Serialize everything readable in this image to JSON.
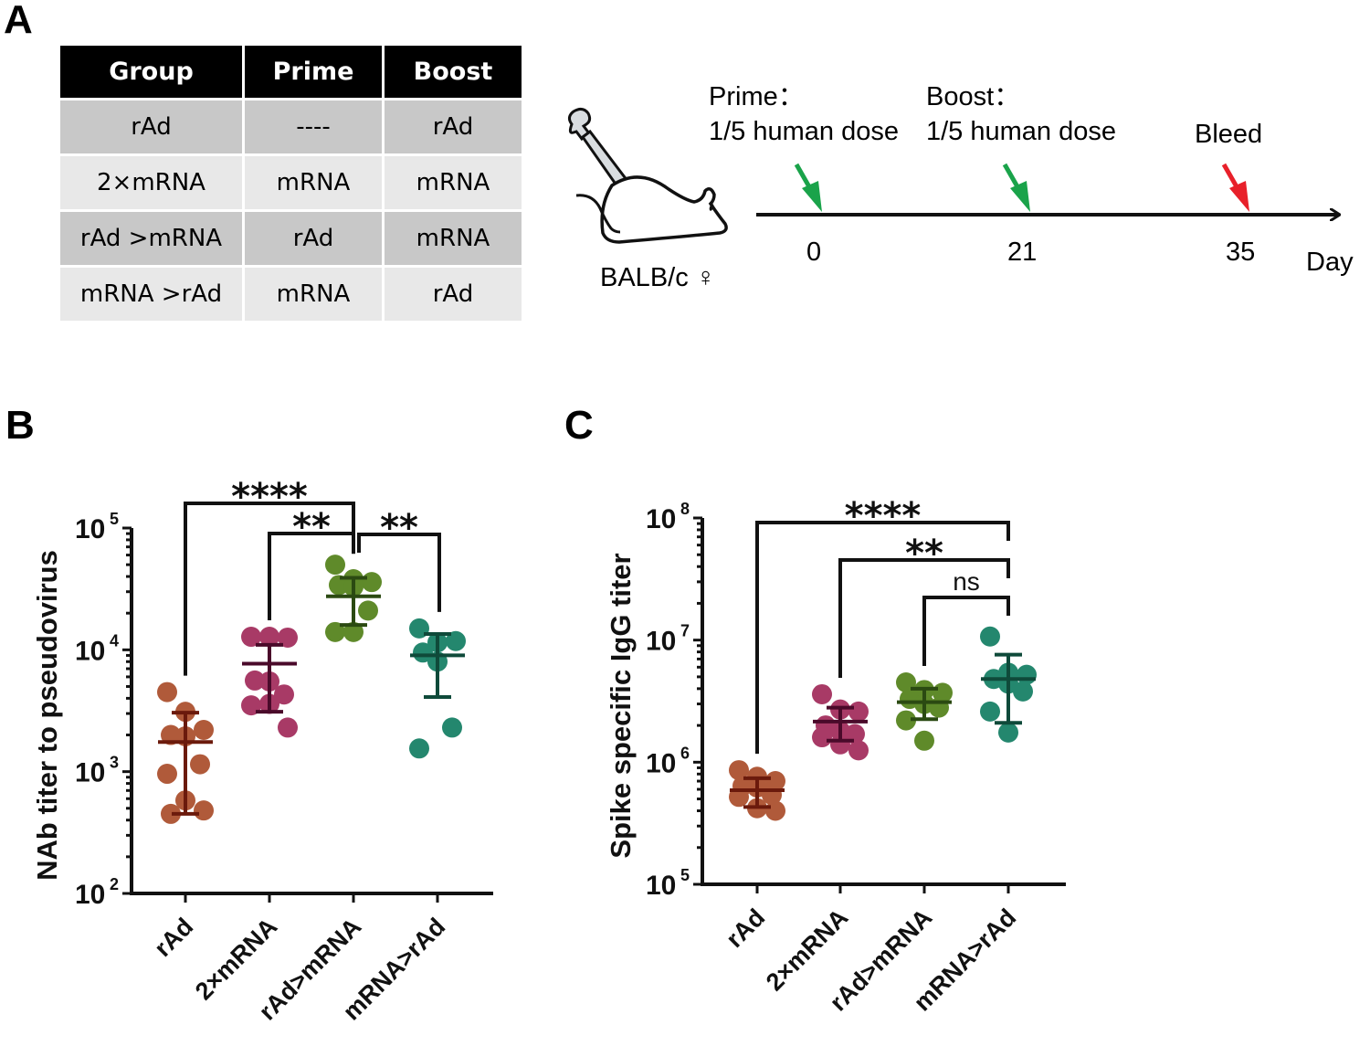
{
  "panels": {
    "a": "A",
    "b": "B",
    "c": "C"
  },
  "table": {
    "headers": [
      "Group",
      "Prime",
      "Boost"
    ],
    "rows": [
      [
        "rAd",
        "----",
        "rAd"
      ],
      [
        "2×mRNA",
        "mRNA",
        "mRNA"
      ],
      [
        "rAd >mRNA",
        "rAd",
        "mRNA"
      ],
      [
        "mRNA >rAd",
        "mRNA",
        "rAd"
      ]
    ]
  },
  "timeline": {
    "prime_label": "Prime：",
    "prime_dose": "1/5 human dose",
    "boost_label": "Boost：",
    "boost_dose": "1/5 human dose",
    "bleed_label": "Bleed",
    "strain": "BALB/c ♀",
    "days": [
      "0",
      "21",
      "35"
    ],
    "unit": "Day",
    "colors": {
      "dose_arrow": "#1aa34a",
      "bleed_arrow": "#e8202a"
    }
  },
  "group_colors": [
    "#b05a3a",
    "#a83a66",
    "#5f8a2a",
    "#24876e"
  ],
  "errorbar_colors": [
    "#6b1a0c",
    "#4a0a2a",
    "#2b4a12",
    "#0f4a3a"
  ],
  "chart_data": [
    {
      "type": "scatter",
      "panel": "B",
      "title": "",
      "ylabel": "NAb titer to pseudovirus",
      "xlabel": "",
      "yscale": "log",
      "ylim": [
        100,
        100000
      ],
      "yticks": [
        {
          "base": "10",
          "exp": "2",
          "value": 100
        },
        {
          "base": "10",
          "exp": "3",
          "value": 1000
        },
        {
          "base": "10",
          "exp": "4",
          "value": 10000
        },
        {
          "base": "10",
          "exp": "5",
          "value": 100000
        }
      ],
      "categories": [
        "rAd",
        "2×mRNA",
        "rAd>mRNA",
        "mRNA>rAd"
      ],
      "series": [
        {
          "name": "rAd",
          "values": [
            4500,
            3100,
            2200,
            2000,
            1950,
            1150,
            960,
            580,
            480,
            450
          ],
          "mean": 1750,
          "sd": [
            450,
            3050
          ]
        },
        {
          "name": "2×mRNA",
          "values": [
            12800,
            12800,
            12600,
            5600,
            5500,
            4300,
            3500,
            3600,
            2300
          ],
          "mean": 7700,
          "sd": [
            3100,
            11000
          ]
        },
        {
          "name": "rAd>mRNA",
          "values": [
            50000,
            38000,
            36000,
            34000,
            33000,
            21000,
            14000,
            14000
          ],
          "mean": 27500,
          "sd": [
            16000,
            39000
          ]
        },
        {
          "name": "mRNA>rAd",
          "values": [
            15000,
            11500,
            11800,
            9500,
            8000,
            2300,
            1550
          ],
          "mean": 9000,
          "sd": [
            4100,
            13500
          ]
        }
      ],
      "comparisons": [
        {
          "from": "rAd",
          "to": "rAd>mRNA",
          "label": "****"
        },
        {
          "from": "2×mRNA",
          "to": "rAd>mRNA",
          "label": "**"
        },
        {
          "from": "rAd>mRNA",
          "to": "mRNA>rAd",
          "label": "**"
        }
      ]
    },
    {
      "type": "scatter",
      "panel": "C",
      "title": "",
      "ylabel": "Spike specific IgG titer",
      "xlabel": "",
      "yscale": "log",
      "ylim": [
        100000,
        100000000
      ],
      "yticks": [
        {
          "base": "10",
          "exp": "5",
          "value": 100000
        },
        {
          "base": "10",
          "exp": "6",
          "value": 1000000
        },
        {
          "base": "10",
          "exp": "7",
          "value": 10000000
        },
        {
          "base": "10",
          "exp": "8",
          "value": 100000000
        }
      ],
      "categories": [
        "rAd",
        "2×mRNA",
        "rAd>mRNA",
        "mRNA>rAd"
      ],
      "series": [
        {
          "name": "rAd",
          "values": [
            860000,
            760000,
            700000,
            640000,
            620000,
            540000,
            520000,
            420000,
            400000
          ],
          "mean": 590000,
          "sd": [
            430000,
            740000
          ]
        },
        {
          "name": "2×mRNA",
          "values": [
            3600000,
            2700000,
            2600000,
            2000000,
            1800000,
            1700000,
            1600000,
            1400000,
            1250000
          ],
          "mean": 2150000,
          "sd": [
            1500000,
            2800000
          ]
        },
        {
          "name": "rAd>mRNA",
          "values": [
            4500000,
            3900000,
            3700000,
            3300000,
            3000000,
            2800000,
            2200000,
            1500000
          ],
          "mean": 3100000,
          "sd": [
            2250000,
            4000000
          ]
        },
        {
          "name": "mRNA>rAd",
          "values": [
            10700000,
            5400000,
            5200000,
            4800000,
            4400000,
            3800000,
            2600000,
            1750000
          ],
          "mean": 4800000,
          "sd": [
            2100000,
            7600000
          ]
        }
      ],
      "comparisons": [
        {
          "from": "rAd",
          "to": "mRNA>rAd",
          "label": "****"
        },
        {
          "from": "2×mRNA",
          "to": "mRNA>rAd",
          "label": "**"
        },
        {
          "from": "rAd>mRNA",
          "to": "mRNA>rAd",
          "label": "ns"
        }
      ]
    }
  ]
}
